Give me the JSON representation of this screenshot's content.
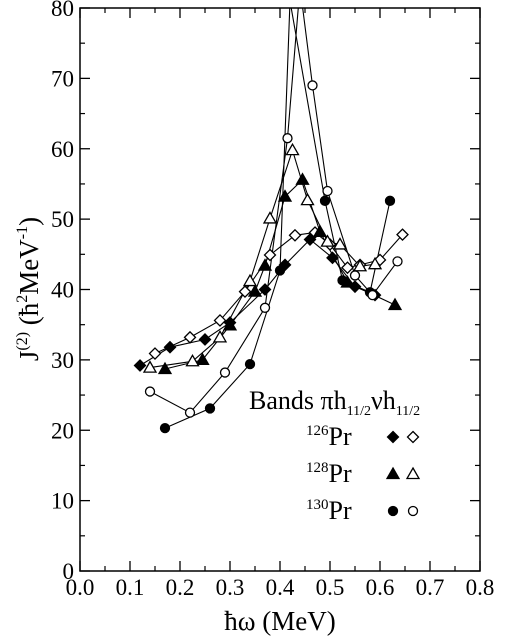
{
  "chart_data": {
    "type": "scatter",
    "xlabel": "ħω (MeV)",
    "ylabel_main": "J",
    "ylabel_sup": "(2)",
    "ylabel_units_pre": "(ħ",
    "ylabel_units_sup": "2",
    "ylabel_units_post": "MeV",
    "ylabel_units_sup2": "-1",
    "ylabel_units_close": ")",
    "xlim": [
      0.0,
      0.8
    ],
    "ylim": [
      0,
      80
    ],
    "x_ticks": [
      "0.0",
      "0.1",
      "0.2",
      "0.3",
      "0.4",
      "0.5",
      "0.6",
      "0.7",
      "0.8"
    ],
    "y_ticks": [
      "0",
      "10",
      "20",
      "30",
      "40",
      "50",
      "60",
      "70",
      "80"
    ],
    "grid": false,
    "legend": {
      "position": "bottom-right",
      "title_word": "Bands",
      "title_pi": "πh",
      "title_pi_sub": "11/2",
      "title_nu": "νh",
      "title_nu_sub": "11/2",
      "entries": [
        {
          "mass": "126",
          "element": "Pr",
          "markers": [
            "diamond-filled",
            "diamond-open"
          ]
        },
        {
          "mass": "128",
          "element": "Pr",
          "markers": [
            "triangle-filled",
            "triangle-open"
          ]
        },
        {
          "mass": "130",
          "element": "Pr",
          "markers": [
            "circle-filled",
            "circle-open"
          ]
        }
      ]
    },
    "series": [
      {
        "nucleus": "126Pr",
        "marker": "diamond",
        "filled": true,
        "points": [
          [
            0.12,
            29.2
          ],
          [
            0.18,
            31.8
          ],
          [
            0.25,
            32.9
          ],
          [
            0.3,
            35.3
          ],
          [
            0.37,
            40.0
          ],
          [
            0.41,
            43.5
          ],
          [
            0.46,
            47.1
          ],
          [
            0.505,
            44.5
          ],
          [
            0.55,
            40.4
          ],
          [
            0.59,
            39.2
          ]
        ]
      },
      {
        "nucleus": "126Pr",
        "marker": "diamond",
        "filled": false,
        "points": [
          [
            0.15,
            30.9
          ],
          [
            0.22,
            33.2
          ],
          [
            0.28,
            35.6
          ],
          [
            0.33,
            39.7
          ],
          [
            0.38,
            44.9
          ],
          [
            0.43,
            47.7
          ],
          [
            0.47,
            48.1
          ],
          [
            0.5,
            46.4
          ],
          [
            0.535,
            43.1
          ],
          [
            0.56,
            43.5
          ],
          [
            0.6,
            44.2
          ],
          [
            0.645,
            47.8
          ]
        ]
      },
      {
        "nucleus": "128Pr",
        "marker": "triangle",
        "filled": true,
        "points": [
          [
            0.17,
            28.7
          ],
          [
            0.245,
            30.0
          ],
          [
            0.3,
            34.9
          ],
          [
            0.35,
            39.7
          ],
          [
            0.37,
            43.4
          ],
          [
            0.41,
            53.2
          ],
          [
            0.445,
            55.6
          ],
          [
            0.48,
            48.2
          ],
          [
            0.535,
            41.0
          ],
          [
            0.63,
            37.8
          ]
        ]
      },
      {
        "nucleus": "128Pr",
        "marker": "triangle",
        "filled": false,
        "points": [
          [
            0.14,
            28.9
          ],
          [
            0.225,
            29.8
          ],
          [
            0.28,
            33.2
          ],
          [
            0.34,
            41.2
          ],
          [
            0.38,
            50.1
          ],
          [
            0.425,
            59.8
          ],
          [
            0.455,
            52.7
          ],
          [
            0.495,
            46.8
          ],
          [
            0.52,
            46.4
          ],
          [
            0.56,
            43.3
          ],
          [
            0.59,
            43.6
          ]
        ]
      },
      {
        "nucleus": "130Pr",
        "marker": "circle",
        "filled": true,
        "points": [
          [
            0.17,
            20.3
          ],
          [
            0.26,
            23.1
          ],
          [
            0.34,
            29.4
          ],
          [
            0.4,
            42.7
          ],
          [
            0.42,
            81.0
          ],
          [
            0.49,
            52.6
          ],
          [
            0.525,
            41.3
          ],
          [
            0.58,
            39.6
          ],
          [
            0.62,
            52.6
          ]
        ]
      },
      {
        "nucleus": "130Pr",
        "marker": "circle",
        "filled": false,
        "points": [
          [
            0.14,
            25.5
          ],
          [
            0.22,
            22.5
          ],
          [
            0.29,
            28.2
          ],
          [
            0.37,
            37.4
          ],
          [
            0.415,
            61.5
          ],
          [
            0.44,
            83.0
          ],
          [
            0.465,
            69.0
          ],
          [
            0.495,
            54.0
          ],
          [
            0.55,
            42.0
          ],
          [
            0.585,
            39.2
          ],
          [
            0.635,
            44.0
          ]
        ]
      }
    ]
  }
}
